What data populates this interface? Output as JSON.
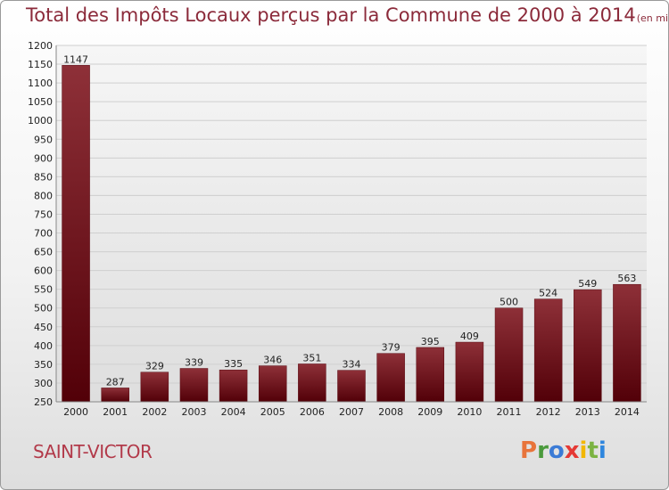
{
  "header": {
    "title": "Total des Impôts Locaux perçus par la Commune de 2000 à 2014",
    "unit": "(en milliers d'€)"
  },
  "footer": {
    "commune": "SAINT-VICTOR",
    "logo": "Proxiti",
    "logo_colors": [
      "#e8743b",
      "#4a9a3c",
      "#3b7bd6",
      "#e53935",
      "#f2b705",
      "#7cb342",
      "#2e86de"
    ]
  },
  "chart_data": {
    "type": "bar",
    "title": "Total des Impôts Locaux perçus par la Commune de 2000 à 2014",
    "xlabel": "",
    "ylabel": "",
    "categories": [
      "2000",
      "2001",
      "2002",
      "2003",
      "2004",
      "2005",
      "2006",
      "2007",
      "2008",
      "2009",
      "2010",
      "2011",
      "2012",
      "2013",
      "2014"
    ],
    "values": [
      1147,
      287,
      329,
      339,
      335,
      346,
      351,
      334,
      379,
      395,
      409,
      500,
      524,
      549,
      563
    ],
    "ylim": [
      250,
      1200
    ],
    "yticks": [
      250,
      300,
      350,
      400,
      450,
      500,
      550,
      600,
      650,
      700,
      750,
      800,
      850,
      900,
      950,
      1000,
      1050,
      1100,
      1150,
      1200
    ],
    "grid": true,
    "bar_color": "#7a1c26",
    "legend": "none"
  }
}
